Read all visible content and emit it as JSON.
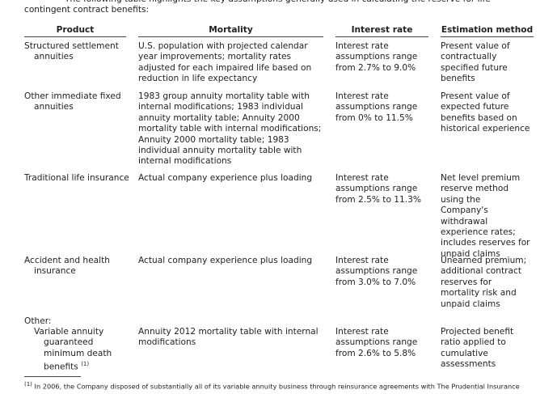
{
  "intro": "The following table highlights the key assumptions generally used in calculating the reserve for life-contingent contract benefits:",
  "table": {
    "headers": [
      "Product",
      "Mortality",
      "Interest rate",
      "Estimation method"
    ],
    "rows": [
      [
        "Structured settlement annuities",
        "U.S. population with projected calendar year improvements; mortality rates adjusted for each impaired life based on reduction in life expectancy",
        "Interest rate assumptions range from 2.7% to 9.0%",
        "Present value of contractually specified future benefits"
      ],
      [
        "Other immediate fixed annuities",
        "1983 group annuity mortality table with internal modifications; 1983 individual annuity mortality table; Annuity 2000 mortality table with internal modifications; Annuity 2000 mortality table; 1983 individual annuity mortality table with internal modifications",
        "Interest rate assumptions range from 0% to 11.5%",
        "Present value of expected future benefits based on historical experience"
      ],
      [
        "Traditional life insurance",
        "Actual company experience plus loading",
        "Interest rate assumptions range from 2.5% to 11.3%",
        "Net level premium reserve method using the Company's withdrawal experience rates; includes reserves for unpaid claims"
      ],
      [
        "Accident and health insurance",
        "Actual company experience plus loading",
        "Interest rate assumptions range from 3.0% to 7.0%",
        "Unearned premium; additional contract reserves for mortality risk and unpaid claims"
      ]
    ],
    "other": {
      "group": "Other:",
      "product": "Variable annuity guaranteed minimum death benefits",
      "note_mark": "(1)",
      "mortality": "Annuity 2012 mortality table with internal modifications",
      "interest": "Interest rate assumptions range from 2.6% to 5.8%",
      "method": "Projected benefit ratio applied to cumulative assessments"
    }
  },
  "footnote": {
    "mark": "(1)",
    "text": "In 2006, the Company disposed of substantially all of its variable annuity business through reinsurance agreements with The Prudential Insurance"
  }
}
